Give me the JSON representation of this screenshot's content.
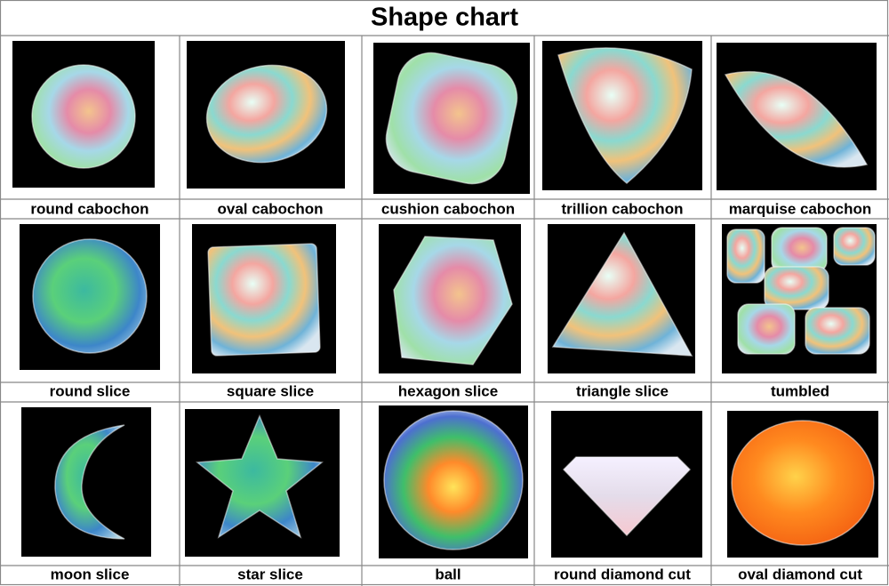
{
  "title": "Shape chart",
  "rows": [
    [
      "round cabochon",
      "oval cabochon",
      "cushion cabochon",
      "trillion cabochon",
      "marquise cabochon"
    ],
    [
      "round slice",
      "square slice",
      "hexagon slice",
      "triangle slice",
      "tumbled"
    ],
    [
      "moon slice",
      "star slice",
      "ball",
      "round diamond cut",
      "oval diamond cut"
    ]
  ]
}
